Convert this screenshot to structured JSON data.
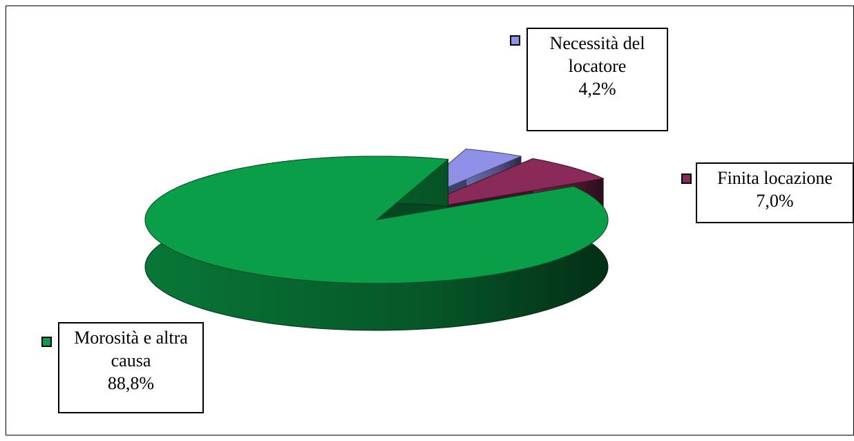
{
  "chart_data": {
    "type": "pie",
    "categories": [
      "Necessità del locatore",
      "Finita locazione",
      "Morosità e altra causa"
    ],
    "values": [
      4.2,
      7.0,
      88.8
    ],
    "value_labels": [
      "4,2%",
      "7,0%",
      "88,8%"
    ],
    "colors": [
      "#8f90e8",
      "#8a2a58",
      "#0a9e48"
    ]
  }
}
